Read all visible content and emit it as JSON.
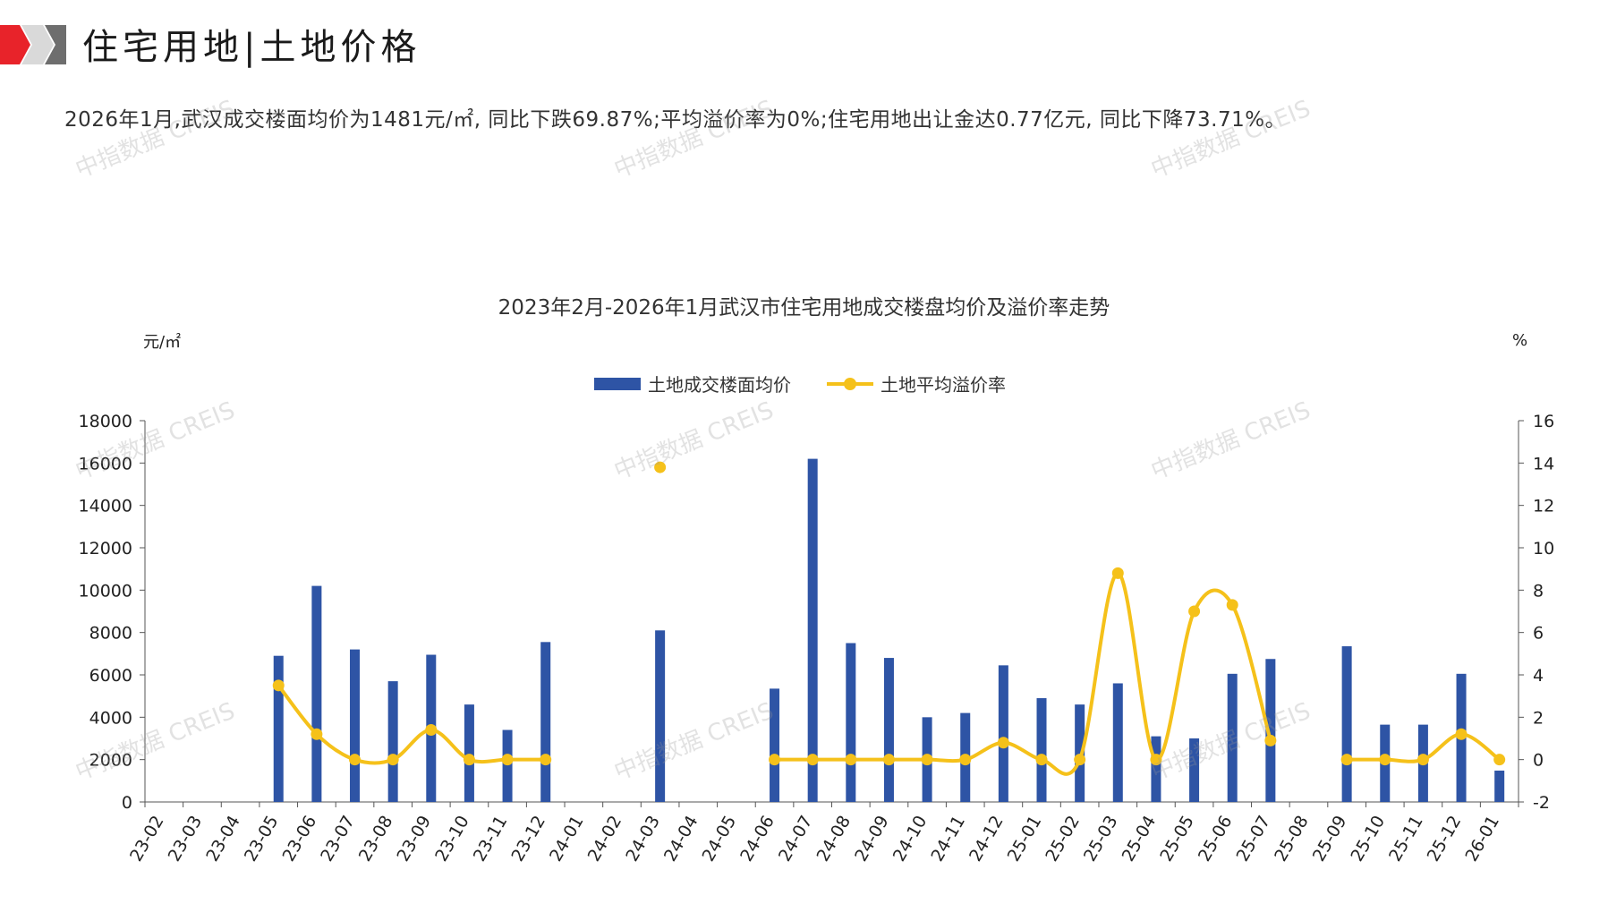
{
  "header": {
    "title": "住宅用地|土地价格",
    "summary": "2026年1月,武汉成交楼面均价为1481元/㎡, 同比下跌69.87%;平均溢价率为0%;住宅用地出让金达0.77亿元, 同比下降73.71%。"
  },
  "watermark": "中指数据 CREIS",
  "colors": {
    "bar": "#2e54a5",
    "line": "#f5c11a",
    "brand_red": "#e8232a",
    "brand_gray": "#8c8c8c"
  },
  "chart_data": {
    "type": "bar",
    "title": "2023年2月-2026年1月武汉市住宅用地成交楼盘均价及溢价率走势",
    "ylabel": "元/㎡",
    "y2label": "%",
    "ylim": [
      0,
      18000
    ],
    "y2lim": [
      -2,
      16
    ],
    "yticks": [
      0,
      2000,
      4000,
      6000,
      8000,
      10000,
      12000,
      14000,
      16000,
      18000
    ],
    "y2ticks": [
      -2,
      0,
      2,
      4,
      6,
      8,
      10,
      12,
      14,
      16
    ],
    "legend_position": "top-center",
    "categories": [
      "23-02",
      "23-03",
      "23-04",
      "23-05",
      "23-06",
      "23-07",
      "23-08",
      "23-09",
      "23-10",
      "23-11",
      "23-12",
      "24-01",
      "24-02",
      "24-03",
      "24-04",
      "24-05",
      "24-06",
      "24-07",
      "24-08",
      "24-09",
      "24-10",
      "24-11",
      "24-12",
      "25-01",
      "25-02",
      "25-03",
      "25-04",
      "25-05",
      "25-06",
      "25-07",
      "25-08",
      "25-09",
      "25-10",
      "25-11",
      "25-12",
      "26-01"
    ],
    "series": [
      {
        "name": "土地成交楼面均价",
        "type": "bar",
        "axis": "left",
        "values": [
          null,
          null,
          null,
          6900,
          10200,
          7200,
          5700,
          6950,
          4600,
          3400,
          7550,
          null,
          null,
          8100,
          null,
          null,
          5350,
          16200,
          7500,
          6800,
          4000,
          4200,
          6450,
          4900,
          4600,
          5600,
          3100,
          3000,
          6050,
          6750,
          null,
          7350,
          3650,
          3650,
          6050,
          1481
        ]
      },
      {
        "name": "土地平均溢价率",
        "type": "line",
        "axis": "right",
        "values": [
          null,
          null,
          null,
          3.5,
          1.2,
          0,
          0,
          1.4,
          0,
          0,
          0,
          null,
          null,
          13.8,
          null,
          null,
          0,
          0,
          0,
          0,
          0,
          0,
          0.8,
          0,
          0,
          8.8,
          0,
          7.0,
          7.3,
          0.9,
          null,
          0,
          0,
          0,
          1.2,
          0
        ]
      }
    ]
  }
}
